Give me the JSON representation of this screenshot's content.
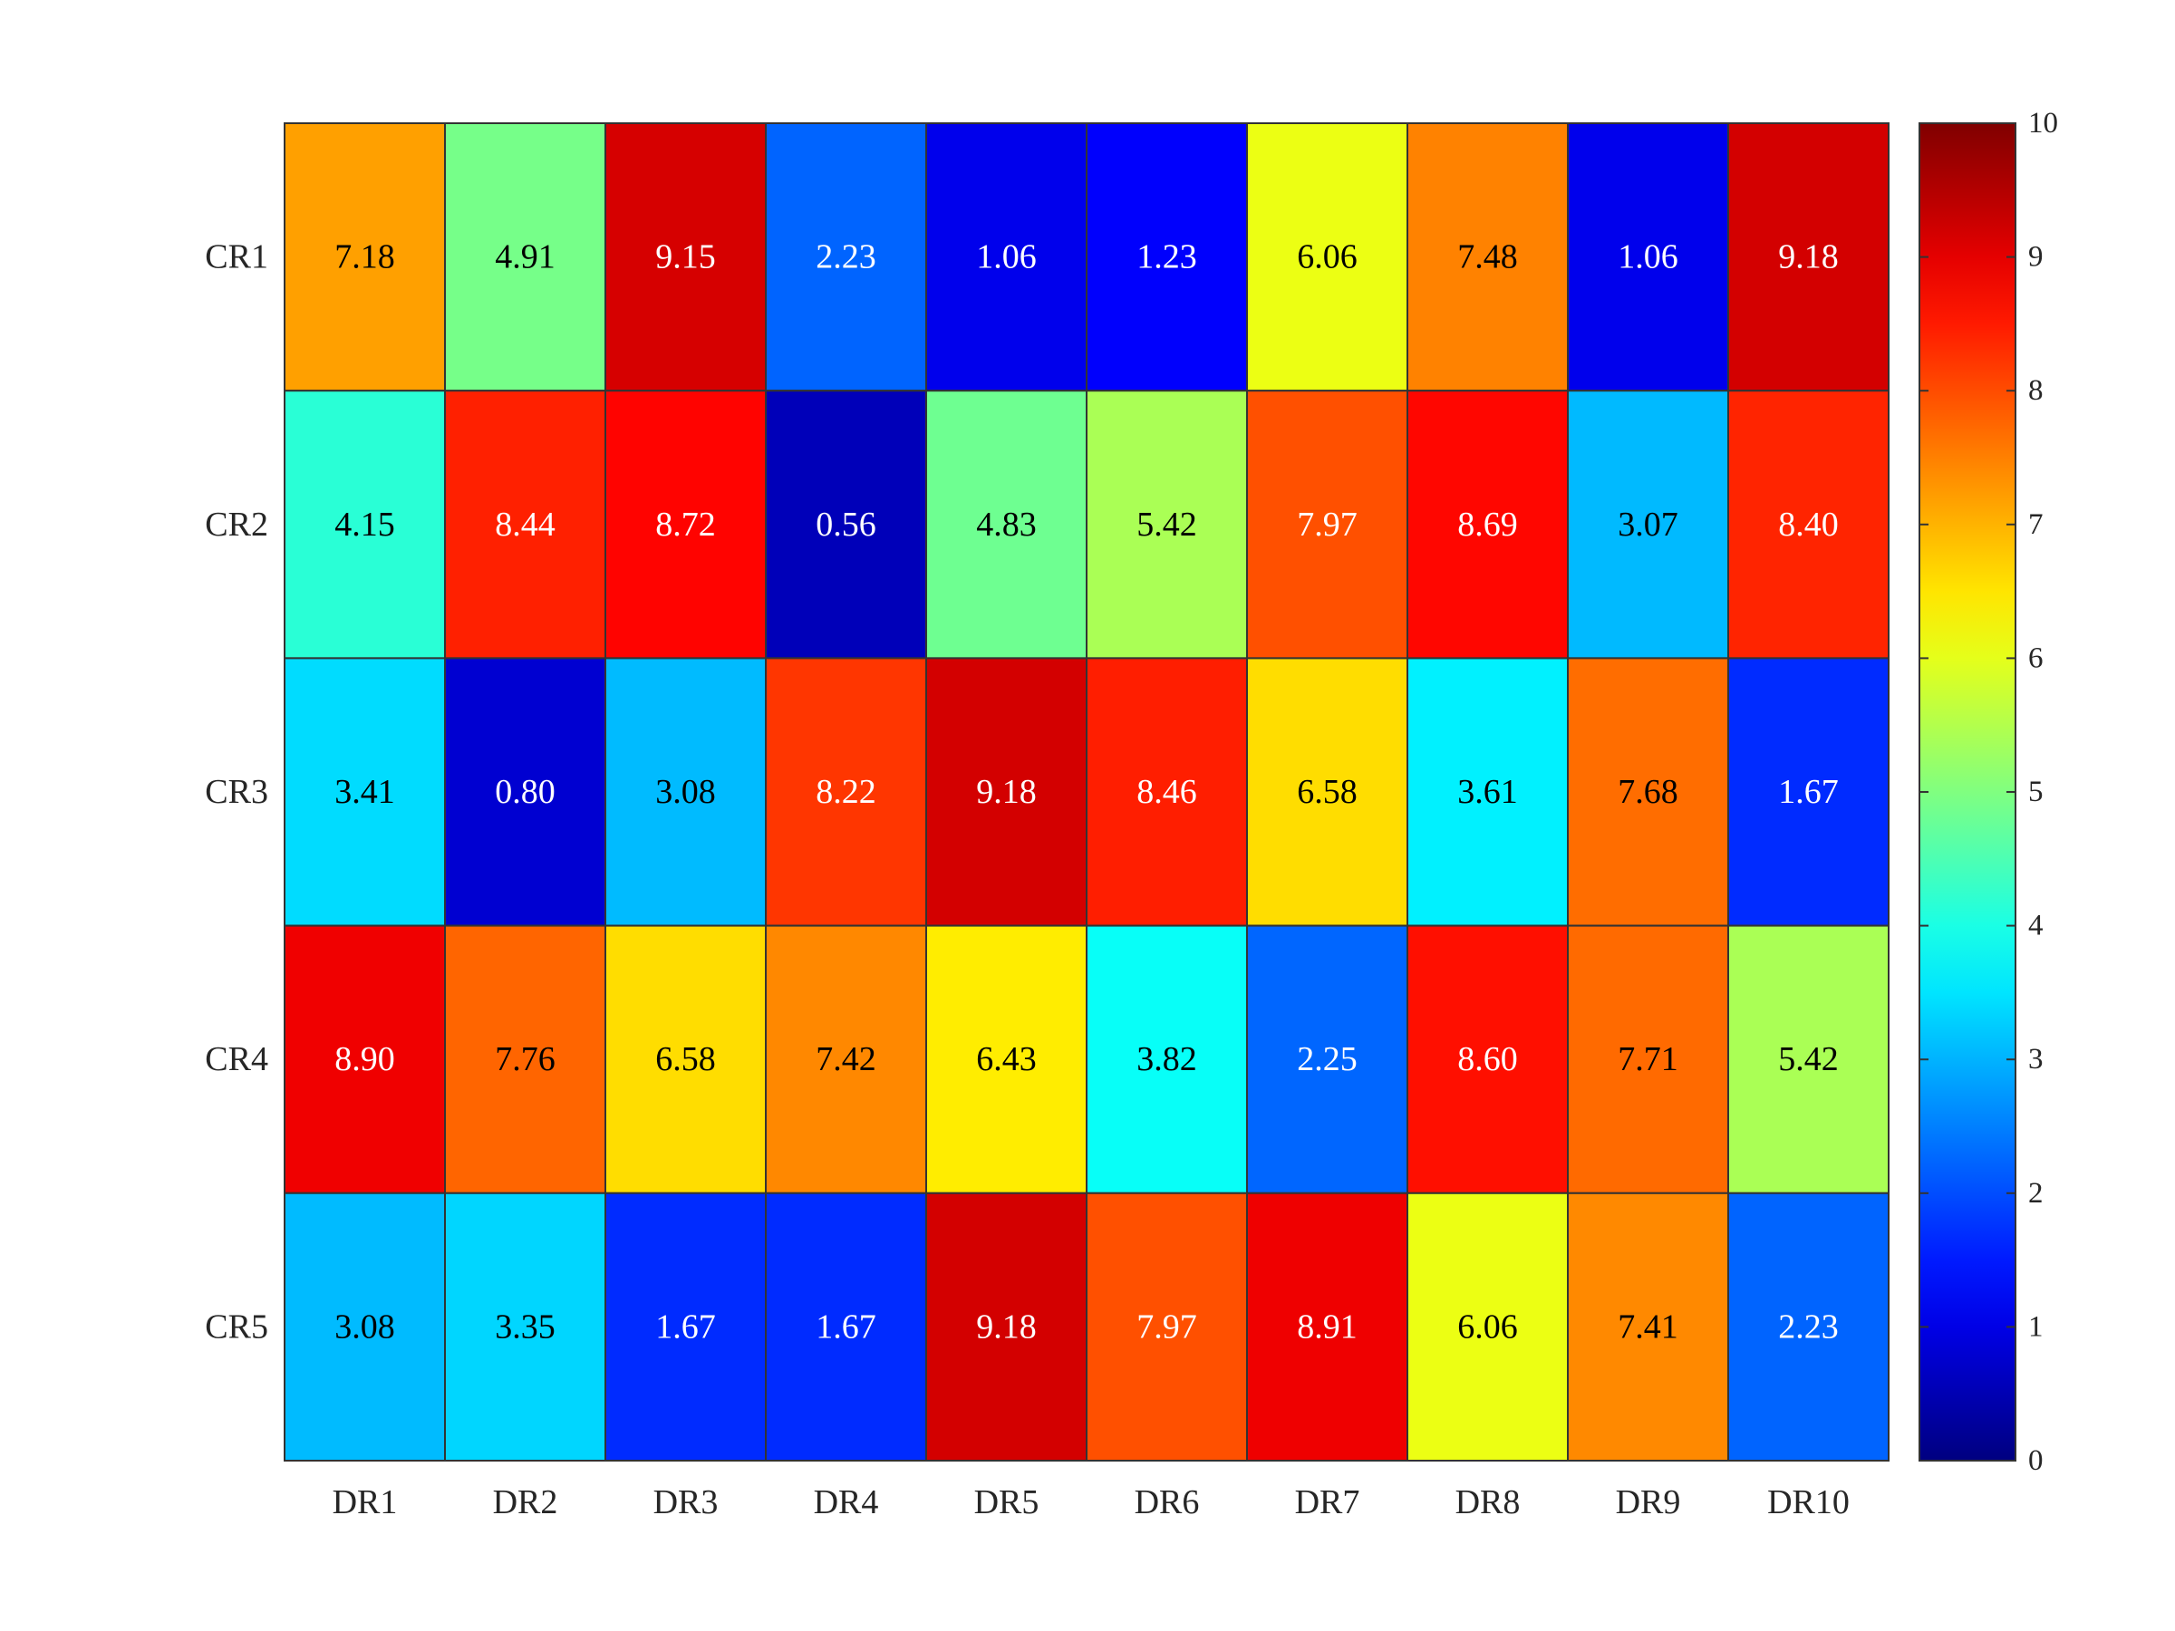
{
  "chart_data": {
    "type": "heatmap",
    "title": "",
    "xlabel": "",
    "ylabel": "",
    "x_categories": [
      "DR1",
      "DR2",
      "DR3",
      "DR4",
      "DR5",
      "DR6",
      "DR7",
      "DR8",
      "DR9",
      "DR10"
    ],
    "y_categories": [
      "CR1",
      "CR2",
      "CR3",
      "CR4",
      "CR5"
    ],
    "values": [
      [
        7.18,
        4.91,
        9.15,
        2.23,
        1.06,
        1.23,
        6.06,
        7.48,
        1.06,
        9.18
      ],
      [
        4.15,
        8.44,
        8.72,
        0.56,
        4.83,
        5.42,
        7.97,
        8.69,
        3.07,
        8.4
      ],
      [
        3.41,
        0.8,
        3.08,
        8.22,
        9.18,
        8.46,
        6.58,
        3.61,
        7.68,
        1.67
      ],
      [
        8.9,
        7.76,
        6.58,
        7.42,
        6.43,
        3.82,
        2.25,
        8.6,
        7.71,
        5.42
      ],
      [
        3.08,
        3.35,
        1.67,
        1.67,
        9.18,
        7.97,
        8.91,
        6.06,
        7.41,
        2.23
      ]
    ],
    "colormap": "jet",
    "color_range": [
      0,
      10
    ],
    "colorbar_ticks": [
      0,
      1,
      2,
      3,
      4,
      5,
      6,
      7,
      8,
      9,
      10
    ],
    "colorbar_placement": "right",
    "value_labels": "shown in each cell, 2 decimals",
    "grid": false
  }
}
